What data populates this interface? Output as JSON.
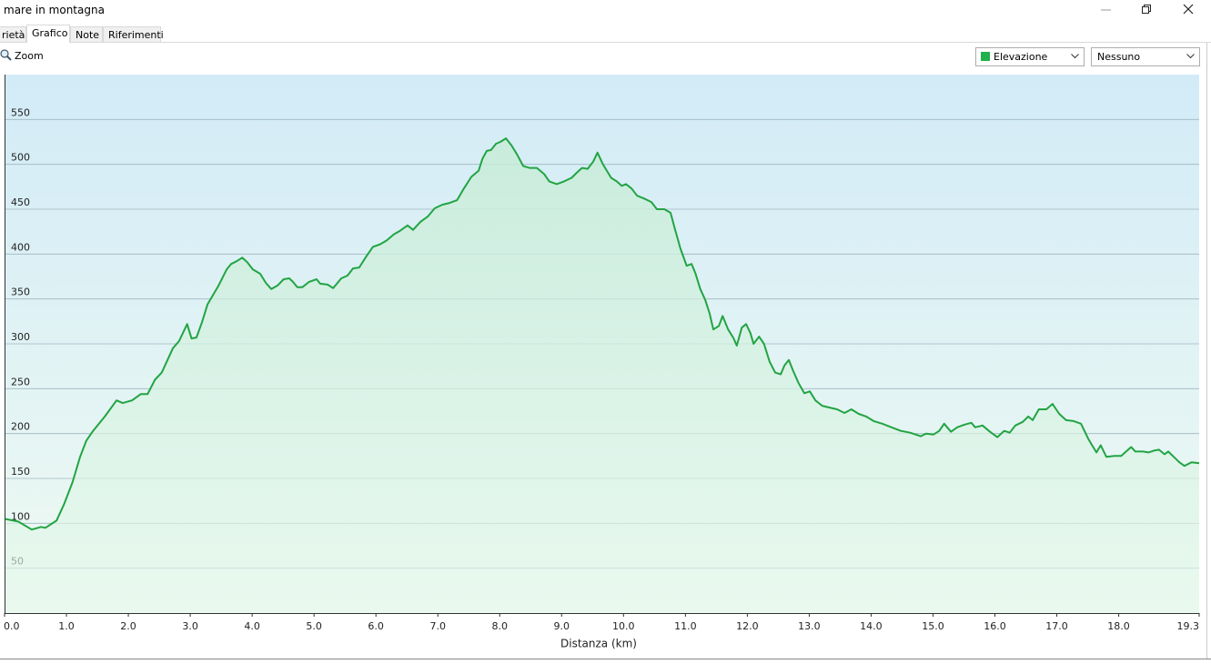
{
  "window": {
    "title": "mare in montagna"
  },
  "tabs": [
    "rietà",
    "Grafico",
    "Note",
    "Riferimenti"
  ],
  "toolbar": {
    "zoom": "Zoom",
    "series_select": "Elevazione",
    "second_select": "Nessuno"
  },
  "chart_data": {
    "type": "area",
    "x_label": "Distanza  (km)",
    "color": "#22a443",
    "grid": true,
    "xlim": [
      0,
      19.3
    ],
    "ylim": [
      0,
      600
    ],
    "xticks": [
      {
        "value": 0,
        "label": "0.0"
      },
      {
        "value": 1,
        "label": "1.0"
      },
      {
        "value": 2,
        "label": "2.0"
      },
      {
        "value": 3,
        "label": "3.0"
      },
      {
        "value": 4,
        "label": "4.0"
      },
      {
        "value": 5,
        "label": "5.0"
      },
      {
        "value": 6,
        "label": "6.0"
      },
      {
        "value": 7,
        "label": "7.0"
      },
      {
        "value": 8,
        "label": "8.0"
      },
      {
        "value": 9,
        "label": "9.0"
      },
      {
        "value": 10,
        "label": "10.0"
      },
      {
        "value": 11,
        "label": "11.0"
      },
      {
        "value": 12,
        "label": "12.0"
      },
      {
        "value": 13,
        "label": "13.0"
      },
      {
        "value": 14,
        "label": "14.0"
      },
      {
        "value": 15,
        "label": "15.0"
      },
      {
        "value": 16,
        "label": "16.0"
      },
      {
        "value": 17,
        "label": "17.0"
      },
      {
        "value": 18,
        "label": "18.0"
      },
      19.3
    ],
    "yticks": [
      50,
      100,
      150,
      200,
      250,
      300,
      350,
      400,
      450,
      500,
      550
    ],
    "x": [
      0,
      0.22,
      0.44,
      0.59,
      0.66,
      0.84,
      0.96,
      1.1,
      1.22,
      1.32,
      1.43,
      1.62,
      1.81,
      1.91,
      2.06,
      2.2,
      2.31,
      2.43,
      2.54,
      2.72,
      2.82,
      2.95,
      3.02,
      3.1,
      3.19,
      3.28,
      3.45,
      3.59,
      3.66,
      3.75,
      3.84,
      3.92,
      4.01,
      4.13,
      4.22,
      4.31,
      4.41,
      4.51,
      4.6,
      4.66,
      4.73,
      4.81,
      4.92,
      5.04,
      5.1,
      5.22,
      5.31,
      5.44,
      5.54,
      5.63,
      5.73,
      5.84,
      5.95,
      6.07,
      6.17,
      6.29,
      6.39,
      6.51,
      6.6,
      6.72,
      6.84,
      6.95,
      7.07,
      7.19,
      7.31,
      7.42,
      7.54,
      7.66,
      7.72,
      7.79,
      7.86,
      7.94,
      8.01,
      8.1,
      8.19,
      8.28,
      8.38,
      8.48,
      8.6,
      8.72,
      8.8,
      8.92,
      9.04,
      9.16,
      9.25,
      9.33,
      9.42,
      9.51,
      9.58,
      9.66,
      9.73,
      9.8,
      9.89,
      9.97,
      10.04,
      10.13,
      10.22,
      10.33,
      10.45,
      10.54,
      10.66,
      10.76,
      10.83,
      10.92,
      11.02,
      11.1,
      11.16,
      11.24,
      11.32,
      11.39,
      11.45,
      11.54,
      11.6,
      11.69,
      11.78,
      11.83,
      11.91,
      11.98,
      12.05,
      12.1,
      12.19,
      12.27,
      12.36,
      12.45,
      12.54,
      12.6,
      12.67,
      12.74,
      12.83,
      12.92,
      13.01,
      13.1,
      13.21,
      13.33,
      13.45,
      13.57,
      13.68,
      13.8,
      13.92,
      14.04,
      14.18,
      14.33,
      14.48,
      14.63,
      14.8,
      14.89,
      15.01,
      15.1,
      15.18,
      15.29,
      15.39,
      15.51,
      15.62,
      15.68,
      15.8,
      15.92,
      16.04,
      16.15,
      16.24,
      16.33,
      16.45,
      16.54,
      16.61,
      16.71,
      16.83,
      16.93,
      17.04,
      17.15,
      17.27,
      17.39,
      17.51,
      17.57,
      17.64,
      17.71,
      17.8,
      17.93,
      18.04,
      18.12,
      18.2,
      18.27,
      18.39,
      18.48,
      18.57,
      18.65,
      18.74,
      18.8,
      18.89,
      18.98,
      19.06,
      19.18,
      19.3
    ],
    "values": [
      105,
      102,
      93,
      96,
      95,
      103,
      121,
      146,
      174,
      192,
      203,
      219,
      237,
      234,
      237,
      244,
      244,
      260,
      268,
      295,
      303,
      322,
      306,
      307,
      324,
      344,
      364,
      383,
      389,
      392,
      396,
      391,
      383,
      378,
      368,
      361,
      365,
      372,
      373,
      369,
      363,
      363,
      369,
      372,
      367,
      366,
      362,
      373,
      376,
      384,
      385,
      397,
      408,
      411,
      415,
      422,
      426,
      432,
      427,
      436,
      442,
      451,
      455,
      457,
      460,
      473,
      486,
      493,
      506,
      515,
      516,
      523,
      525,
      529,
      521,
      511,
      498,
      496,
      496,
      489,
      481,
      478,
      481,
      485,
      491,
      496,
      495,
      503,
      513,
      501,
      493,
      485,
      481,
      476,
      478,
      473,
      465,
      462,
      458,
      450,
      450,
      446,
      428,
      406,
      387,
      389,
      379,
      361,
      349,
      334,
      316,
      320,
      331,
      316,
      306,
      298,
      318,
      322,
      312,
      300,
      308,
      300,
      280,
      268,
      266,
      276,
      282,
      270,
      256,
      245,
      247,
      237,
      231,
      229,
      227,
      223,
      227,
      222,
      219,
      214,
      211,
      207,
      203,
      201,
      197,
      200,
      199,
      203,
      211,
      202,
      207,
      210,
      212,
      207,
      209,
      202,
      196,
      203,
      201,
      209,
      213,
      219,
      215,
      227,
      227,
      233,
      222,
      215,
      214,
      211,
      194,
      187,
      179,
      187,
      174,
      175,
      175,
      180,
      185,
      180,
      180,
      179,
      181,
      182,
      177,
      180,
      174,
      168,
      164,
      168,
      167
    ]
  }
}
